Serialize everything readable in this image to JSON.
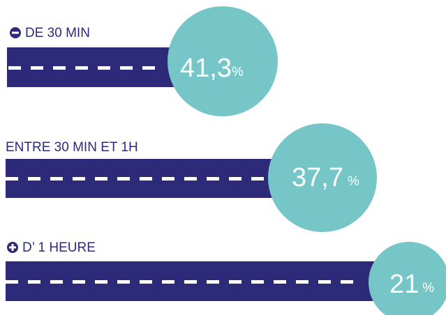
{
  "items": [
    {
      "label": "DE 30 MIN",
      "number": "41,3",
      "unit": "%"
    },
    {
      "label": "ENTRE 30 MIN ET 1H",
      "number": "37,7",
      "unit": "%"
    },
    {
      "label": "D’ 1 HEURE",
      "number": "21",
      "unit": "%"
    }
  ]
}
